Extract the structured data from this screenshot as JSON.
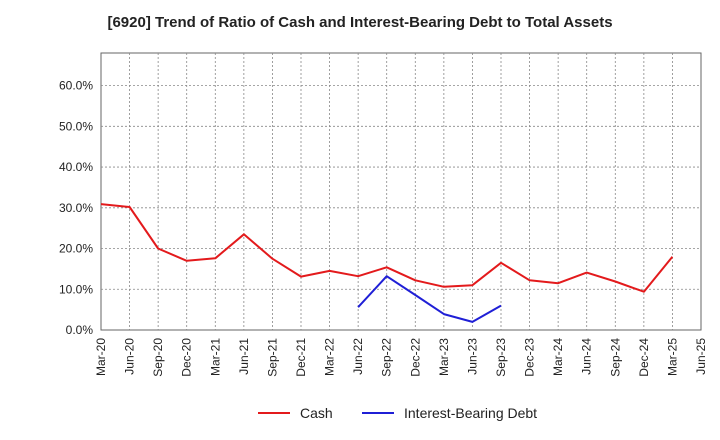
{
  "chart_data": {
    "type": "line",
    "title": "[6920]  Trend of Ratio of Cash and Interest-Bearing Debt to Total Assets",
    "xlabel": "",
    "ylabel": "",
    "categories": [
      "Mar-20",
      "Jun-20",
      "Sep-20",
      "Dec-20",
      "Mar-21",
      "Jun-21",
      "Sep-21",
      "Dec-21",
      "Mar-22",
      "Jun-22",
      "Sep-22",
      "Dec-22",
      "Mar-23",
      "Jun-23",
      "Sep-23",
      "Dec-23",
      "Mar-24",
      "Jun-24",
      "Sep-24",
      "Dec-24",
      "Mar-25",
      "Jun-25"
    ],
    "ylim": [
      0,
      68
    ],
    "yticks": [
      0,
      10,
      20,
      30,
      40,
      50,
      60
    ],
    "ytick_labels": [
      "0.0%",
      "10.0%",
      "20.0%",
      "30.0%",
      "40.0%",
      "50.0%",
      "60.0%"
    ],
    "grid": true,
    "legend_position": "bottom",
    "series": [
      {
        "name": "Cash",
        "color": "#e31a1c",
        "values": [
          30.9,
          30.2,
          20.0,
          17.0,
          17.6,
          23.5,
          17.5,
          13.1,
          14.5,
          13.2,
          15.4,
          12.2,
          10.6,
          11.0,
          16.5,
          12.2,
          11.5,
          14.1,
          11.9,
          9.4,
          18.0,
          null
        ]
      },
      {
        "name": "Interest-Bearing Debt",
        "color": "#1f1fd6",
        "values": [
          null,
          null,
          null,
          null,
          null,
          null,
          null,
          null,
          null,
          5.6,
          13.2,
          8.6,
          3.9,
          2.0,
          6.0,
          null,
          null,
          null,
          null,
          null,
          null,
          null
        ]
      }
    ]
  }
}
